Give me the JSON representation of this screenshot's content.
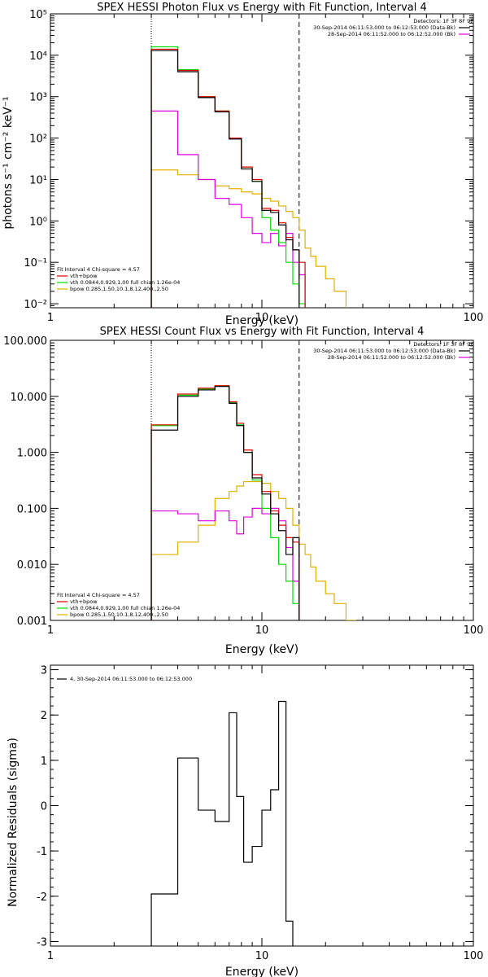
{
  "colors": {
    "background": "#ffffff",
    "axis": "#000000",
    "fit_total": "#000000",
    "data": "#e00000",
    "vth": "#00e000",
    "bpow": "#e0b000",
    "background_trace": "#e000e0"
  },
  "chart_data": [
    {
      "id": "photon",
      "type": "line",
      "step": true,
      "title": "SPEX HESSI Photon Flux vs Energy with Fit Function, Interval 4",
      "xlabel": "Energy (keV)",
      "ylabel": "photons s⁻¹ cm⁻² keV⁻¹",
      "xscale": "log",
      "yscale": "log",
      "xlim": [
        1,
        100
      ],
      "ylim": [
        0.008,
        100000
      ],
      "xticks": [
        {
          "v": 1,
          "label": "1"
        },
        {
          "v": 10,
          "label": "10"
        },
        {
          "v": 100,
          "label": "100"
        }
      ],
      "yticks": [
        {
          "v": 0.01,
          "label": "10⁻²"
        },
        {
          "v": 0.1,
          "label": "10⁻¹"
        },
        {
          "v": 1,
          "label": "10⁰"
        },
        {
          "v": 10,
          "label": "10¹"
        },
        {
          "v": 100,
          "label": "10²"
        },
        {
          "v": 1000,
          "label": "10³"
        },
        {
          "v": 10000,
          "label": "10⁴"
        },
        {
          "v": 100000,
          "label": "10⁵"
        }
      ],
      "vlines": [
        {
          "x": 3.0,
          "style": "dotted"
        },
        {
          "x": 15.0,
          "style": "dashed"
        }
      ],
      "edges": [
        3.0,
        4.0,
        5.0,
        6.0,
        7.0,
        8.0,
        9.0,
        10.0,
        11.0,
        12.0,
        13.0,
        14.0,
        15.0,
        16.0,
        17.0,
        18.0,
        20.0,
        22.0,
        25.0
      ],
      "series": [
        {
          "key": "bpow",
          "values": [
            17,
            13,
            10,
            7,
            6,
            5,
            4.5,
            3.5,
            3,
            2.3,
            1.7,
            1.2,
            0.6,
            0.22,
            0.14,
            0.08,
            0.04,
            0.02
          ]
        },
        {
          "key": "background_trace",
          "values": [
            450,
            40,
            10,
            3.5,
            2.5,
            1.2,
            0.5,
            0.3,
            0.5,
            0.25,
            0.5,
            0.1,
            0.05
          ]
        },
        {
          "key": "vth",
          "values": [
            16000,
            4500,
            1000,
            450,
            100,
            20,
            9,
            1.2,
            0.6,
            0.3,
            0.1,
            0.03,
            0.01
          ]
        },
        {
          "key": "data",
          "values": [
            14000,
            4300,
            1000,
            450,
            100,
            20,
            10,
            2,
            1.8,
            0.9,
            0.4,
            0.2,
            0.1
          ]
        },
        {
          "key": "fit_total",
          "values": [
            13000,
            4000,
            950,
            430,
            95,
            18,
            9,
            1.8,
            1.6,
            0.8,
            0.35,
            0.2
          ]
        }
      ],
      "upper_right": {
        "detectors": "Detectors: 1F 3F 8F 9F",
        "lines": [
          {
            "key": "fit_total",
            "text": "30-Sep-2014 06:11:53.000 to 06:12:53.000 (Data-Bk)"
          },
          {
            "key": "background_trace",
            "text": "28-Sep-2014 06:11:52.000 to 06:12:52.000 (Bk)"
          }
        ]
      },
      "lower_left": {
        "header": "Fit Interval  4    Chi-square = 4.57",
        "lines": [
          {
            "key": "data",
            "text": "vth+bpow"
          },
          {
            "key": "vth",
            "text": "vth 0.0844,0.929,1.00  full chian 1.26e-04"
          },
          {
            "key": "bpow",
            "text": "bpow 0.285,1.50,10.1,8.12,400.,2.50"
          }
        ]
      }
    },
    {
      "id": "count",
      "type": "line",
      "step": true,
      "title": "SPEX HESSI Count Flux vs Energy with Fit Function, Interval 4",
      "xlabel": "Energy (keV)",
      "ylabel": "",
      "xscale": "log",
      "yscale": "log",
      "xlim": [
        1,
        100
      ],
      "ylim": [
        0.001,
        100
      ],
      "xticks": [
        {
          "v": 1,
          "label": "1"
        },
        {
          "v": 10,
          "label": "10"
        },
        {
          "v": 100,
          "label": "100"
        }
      ],
      "yticks": [
        {
          "v": 0.001,
          "label": "0.001"
        },
        {
          "v": 0.01,
          "label": "0.010"
        },
        {
          "v": 0.1,
          "label": "0.100"
        },
        {
          "v": 1,
          "label": "1.000"
        },
        {
          "v": 10,
          "label": "10.000"
        },
        {
          "v": 100,
          "label": "100.000"
        }
      ],
      "vlines": [
        {
          "x": 3.0,
          "style": "dotted"
        },
        {
          "x": 15.0,
          "style": "dashed"
        }
      ],
      "edges": [
        3.0,
        4.0,
        5.0,
        6.0,
        7.0,
        7.6,
        8.2,
        9.0,
        10.0,
        11.0,
        12.0,
        13.0,
        14.0,
        15.0,
        16.0,
        17.0,
        18.0,
        20.0,
        22.0,
        25.0,
        28.0
      ],
      "series": [
        {
          "key": "bpow",
          "values": [
            0.015,
            0.025,
            0.05,
            0.15,
            0.2,
            0.25,
            0.3,
            0.3,
            0.28,
            0.2,
            0.15,
            0.1,
            0.05,
            0.023,
            0.015,
            0.009,
            0.005,
            0.003,
            0.002,
            0.001
          ]
        },
        {
          "key": "background_trace",
          "values": [
            0.09,
            0.08,
            0.06,
            0.09,
            0.06,
            0.035,
            0.07,
            0.1,
            0.08,
            0.1,
            0.06,
            0.02,
            0.005
          ]
        },
        {
          "key": "vth",
          "values": [
            3.0,
            10.5,
            13.5,
            15.5,
            7.7,
            3.1,
            1.0,
            0.32,
            0.1,
            0.03,
            0.01,
            0.005,
            0.002
          ]
        },
        {
          "key": "data",
          "values": [
            3.1,
            11.0,
            14.0,
            15.5,
            8.0,
            3.3,
            1.1,
            0.4,
            0.2,
            0.09,
            0.05,
            0.03,
            0.025
          ]
        },
        {
          "key": "fit_total",
          "values": [
            2.5,
            10.0,
            13.0,
            15.0,
            7.5,
            3.0,
            1.0,
            0.35,
            0.18,
            0.08,
            0.04,
            0.015,
            0.03
          ]
        }
      ],
      "upper_right": {
        "detectors": "Detectors: 1F 3F 8F 9F",
        "lines": [
          {
            "key": "fit_total",
            "text": "30-Sep-2014 06:11:53.000 to 06:12:53.000 (Data-Bk)"
          },
          {
            "key": "background_trace",
            "text": "28-Sep-2014 06:11:52.000 to 06:12:52.000 (Bk)"
          }
        ]
      },
      "lower_left": {
        "header": "Fit Interval  4    Chi-square = 4.57",
        "lines": [
          {
            "key": "data",
            "text": "vth+bpow"
          },
          {
            "key": "vth",
            "text": "vth 0.0844,0.929,1.00  full chian 1.26e-04"
          },
          {
            "key": "bpow",
            "text": "bpow 0.285,1.50,10.1,8.12,400.,2.50"
          }
        ]
      }
    },
    {
      "id": "resid",
      "type": "line",
      "step": true,
      "title": "",
      "xlabel": "Energy (keV)",
      "ylabel": "Normalized Residuals (sigma)",
      "xscale": "log",
      "yscale": "linear",
      "xlim": [
        1,
        100
      ],
      "ylim": [
        -3.1,
        3.1
      ],
      "xticks": [
        {
          "v": 1,
          "label": "1"
        },
        {
          "v": 10,
          "label": "10"
        },
        {
          "v": 100,
          "label": "100"
        }
      ],
      "yticks": [
        {
          "v": -3,
          "label": "-3"
        },
        {
          "v": -2,
          "label": "-2"
        },
        {
          "v": -1,
          "label": "-1"
        },
        {
          "v": 0,
          "label": "0"
        },
        {
          "v": 1,
          "label": "1"
        },
        {
          "v": 2,
          "label": "2"
        },
        {
          "v": 3,
          "label": "3"
        }
      ],
      "vlines": [],
      "edges": [
        3.0,
        4.0,
        5.0,
        6.0,
        7.0,
        7.6,
        8.2,
        9.0,
        10.0,
        11.0,
        12.0,
        13.0,
        14.0,
        15.0
      ],
      "series": [
        {
          "key": "fit_total",
          "values": [
            -1.95,
            1.05,
            -0.1,
            -0.35,
            2.05,
            0.2,
            -1.25,
            -0.9,
            -0.1,
            0.35,
            2.3,
            -2.55
          ],
          "drop_to": -3.1
        }
      ],
      "upper_left_line": {
        "key": "fit_total",
        "text": "4, 30-Sep-2014 06:11:53.000 to 06:12:53.000"
      }
    }
  ]
}
